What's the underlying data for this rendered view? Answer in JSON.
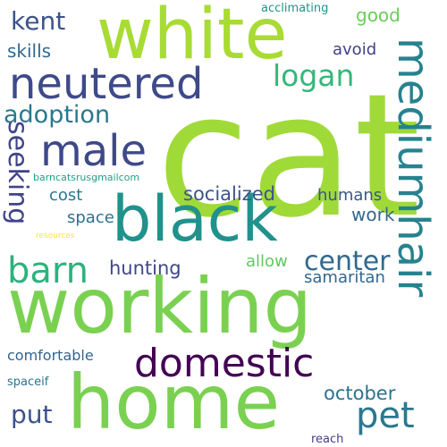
{
  "words": [
    {
      "text": "cat",
      "color": "#a0da39",
      "orientation": "horizontal"
    },
    {
      "text": "working",
      "color": "#7ad151",
      "orientation": "horizontal"
    },
    {
      "text": "home",
      "color": "#7ad151",
      "orientation": "horizontal"
    },
    {
      "text": "white",
      "color": "#a8db34",
      "orientation": "horizontal"
    },
    {
      "text": "black",
      "color": "#21918c",
      "orientation": "horizontal"
    },
    {
      "text": "neutered",
      "color": "#3e4a89",
      "orientation": "horizontal"
    },
    {
      "text": "mediumhair",
      "color": "#26828e",
      "orientation": "vertical"
    },
    {
      "text": "domestic",
      "color": "#440154",
      "orientation": "horizontal"
    },
    {
      "text": "male",
      "color": "#3e4989",
      "orientation": "horizontal"
    },
    {
      "text": "barn",
      "color": "#2db27d",
      "orientation": "horizontal"
    },
    {
      "text": "pet",
      "color": "#2a788e",
      "orientation": "horizontal"
    },
    {
      "text": "seeking",
      "color": "#414487",
      "orientation": "vertical"
    },
    {
      "text": "adoption",
      "color": "#2a788e",
      "orientation": "horizontal"
    },
    {
      "text": "logan",
      "color": "#35b779",
      "orientation": "horizontal"
    },
    {
      "text": "center",
      "color": "#31688e",
      "orientation": "horizontal"
    },
    {
      "text": "kent",
      "color": "#3b528b",
      "orientation": "horizontal"
    },
    {
      "text": "put",
      "color": "#3b528b",
      "orientation": "horizontal"
    },
    {
      "text": "october",
      "color": "#2c728e",
      "orientation": "horizontal"
    },
    {
      "text": "hunting",
      "color": "#3f4788",
      "orientation": "horizontal"
    },
    {
      "text": "socialized",
      "color": "#3b528b",
      "orientation": "horizontal"
    },
    {
      "text": "skills",
      "color": "#31688e",
      "orientation": "horizontal"
    },
    {
      "text": "good",
      "color": "#6ccd5a",
      "orientation": "horizontal"
    },
    {
      "text": "work",
      "color": "#31688e",
      "orientation": "horizontal"
    },
    {
      "text": "avoid",
      "color": "#424086",
      "orientation": "horizontal"
    },
    {
      "text": "space",
      "color": "#2c728e",
      "orientation": "horizontal"
    },
    {
      "text": "cost",
      "color": "#2a788e",
      "orientation": "horizontal"
    },
    {
      "text": "humans",
      "color": "#39568c",
      "orientation": "horizontal"
    },
    {
      "text": "samaritan",
      "color": "#31688e",
      "orientation": "horizontal"
    },
    {
      "text": "allow",
      "color": "#5ec962",
      "orientation": "horizontal"
    },
    {
      "text": "comfortable",
      "color": "#33638d",
      "orientation": "horizontal"
    },
    {
      "text": "spaceif",
      "color": "#2c728e",
      "orientation": "horizontal"
    },
    {
      "text": "acclimating",
      "color": "#21918c",
      "orientation": "horizontal"
    },
    {
      "text": "reach",
      "color": "#433e85",
      "orientation": "horizontal"
    },
    {
      "text": "barncatsrusgmailcom",
      "color": "#1fa088",
      "orientation": "horizontal"
    },
    {
      "text": "resources",
      "color": "#fde725",
      "orientation": "horizontal"
    }
  ]
}
